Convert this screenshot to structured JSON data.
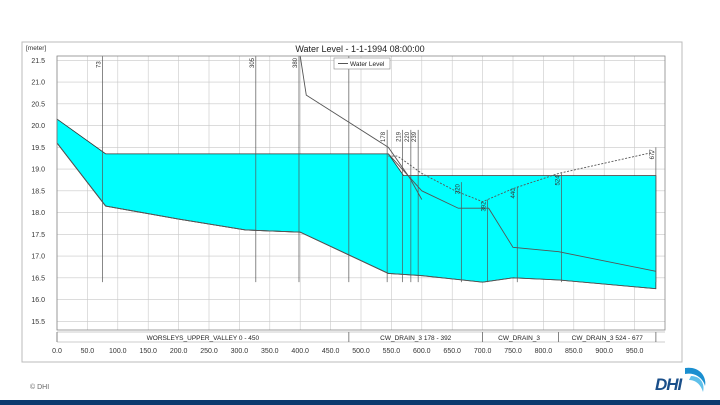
{
  "footer": {
    "copyright": "© DHI",
    "logo_text": "DHI"
  },
  "colors": {
    "fill": "#00ffff",
    "line": "#555555",
    "grid": "#c8c8c8",
    "brand": "#0b3a6e"
  },
  "chart_data": {
    "type": "area",
    "title": "Water Level - 1-1-1994 08:00:00",
    "ylabel": "[meter]",
    "legend": {
      "entries": [
        "Water Level"
      ],
      "placement": "top-right"
    },
    "xlim": [
      0,
      1000
    ],
    "ylim": [
      15.3,
      21.6
    ],
    "grid": true,
    "xticks": [
      "0.0",
      "50.0",
      "100.0",
      "150.0",
      "200.0",
      "250.0",
      "300.0",
      "350.0",
      "400.0",
      "450.0",
      "500.0",
      "550.0",
      "600.0",
      "650.0",
      "700.0",
      "750.0",
      "800.0",
      "850.0",
      "900.0",
      "950.0"
    ],
    "yticks": [
      "15.5",
      "16.0",
      "16.5",
      "17.0",
      "17.5",
      "18.0",
      "18.5",
      "19.0",
      "19.5",
      "20.0",
      "20.5",
      "21.0",
      "21.5"
    ],
    "water_level": [
      [
        0,
        20.15
      ],
      [
        80,
        19.35
      ],
      [
        545,
        19.35
      ],
      [
        570,
        18.85
      ],
      [
        985,
        18.85
      ]
    ],
    "bed_level": [
      [
        0,
        19.6
      ],
      [
        80,
        18.15
      ],
      [
        200,
        17.85
      ],
      [
        310,
        17.6
      ],
      [
        400,
        17.55
      ],
      [
        545,
        16.6
      ],
      [
        600,
        16.55
      ],
      [
        700,
        16.4
      ],
      [
        750,
        16.5
      ],
      [
        825,
        16.45
      ],
      [
        985,
        16.25
      ]
    ],
    "bank_line_upper": [
      [
        0,
        19.6
      ],
      [
        80,
        18.15
      ],
      [
        200,
        17.85
      ],
      [
        310,
        17.6
      ],
      [
        400,
        17.55
      ],
      [
        545,
        16.6
      ]
    ],
    "bank_line_lower": [
      [
        545,
        19.35
      ],
      [
        600,
        18.5
      ],
      [
        660,
        18.1
      ],
      [
        710,
        18.1
      ],
      [
        750,
        17.2
      ],
      [
        825,
        17.1
      ],
      [
        985,
        16.65
      ]
    ],
    "node_profile": [
      [
        400,
        21.6
      ],
      [
        410,
        20.7
      ],
      [
        545,
        19.5
      ],
      [
        580,
        18.8
      ],
      [
        600,
        18.3
      ]
    ],
    "computational_line": [
      [
        545,
        19.3
      ],
      [
        560,
        19.3
      ],
      [
        600,
        18.9
      ],
      [
        655,
        18.5
      ],
      [
        700,
        18.25
      ],
      [
        750,
        18.55
      ],
      [
        825,
        18.9
      ],
      [
        985,
        19.4
      ]
    ],
    "markers": [
      {
        "label": "73",
        "x": 75,
        "top": 21.6
      },
      {
        "label": "305",
        "x": 327,
        "top": 21.6
      },
      {
        "label": "380",
        "x": 398,
        "top": 21.6
      },
      {
        "label": "4",
        "x": 480,
        "top": 21.6
      },
      {
        "label": "178",
        "x": 543,
        "top": 19.9
      },
      {
        "label": "219",
        "x": 568,
        "top": 19.9
      },
      {
        "label": "220",
        "x": 582,
        "top": 19.9
      },
      {
        "label": "239",
        "x": 594,
        "top": 19.9
      },
      {
        "label": "320",
        "x": 665,
        "top": 18.7
      },
      {
        "label": "392",
        "x": 708,
        "top": 18.3
      },
      {
        "label": "440",
        "x": 757,
        "top": 18.6
      },
      {
        "label": "524",
        "x": 830,
        "top": 18.9
      },
      {
        "label": "677",
        "x": 985,
        "top": 19.5
      }
    ],
    "section_dividers": [
      0,
      480,
      700,
      825,
      985
    ],
    "branches": [
      {
        "label": "WORSLEYS_UPPER_VALLEY  0 - 450",
        "x": 240
      },
      {
        "label": "CW_DRAIN_3  178 - 392",
        "x": 590
      },
      {
        "label": "CW_DRAIN_3",
        "x": 760
      },
      {
        "label": "CW_DRAIN_3  524 - 677",
        "x": 905
      }
    ]
  }
}
